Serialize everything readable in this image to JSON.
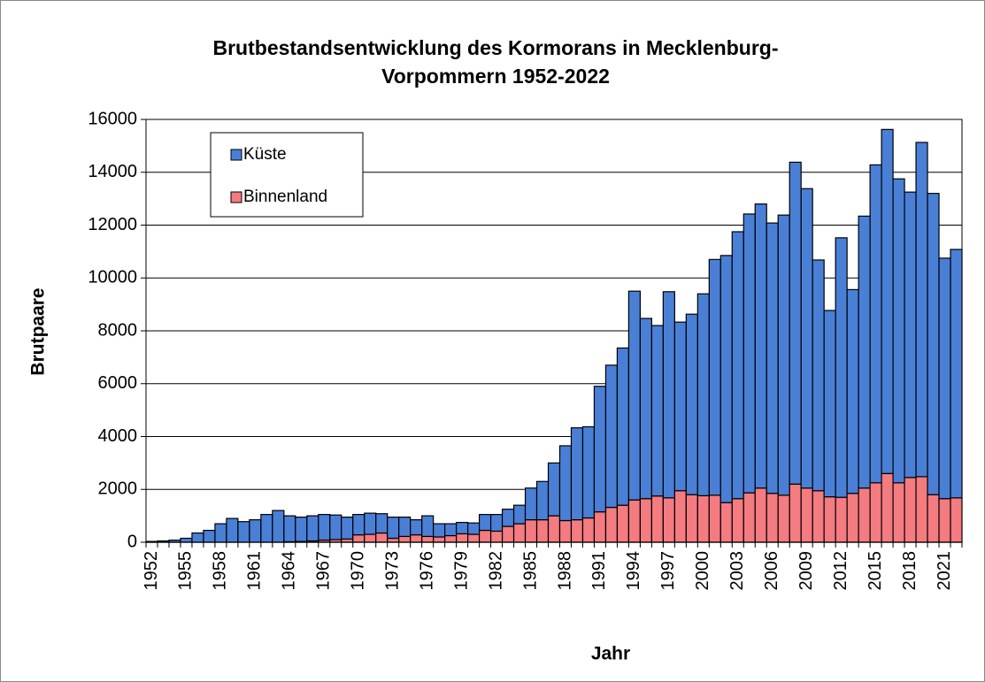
{
  "chart_data": {
    "type": "stacked_bar",
    "title": [
      "Brutbestandsentwicklung des Kormorans in Mecklenburg-",
      "Vorpommern 1952-2022"
    ],
    "x_label": "Jahr",
    "y_label": "Brutpaare",
    "categories": [
      "1952",
      null,
      null,
      "1955",
      null,
      null,
      "1958",
      null,
      null,
      "1961",
      null,
      null,
      "1964",
      null,
      null,
      "1967",
      null,
      null,
      "1970",
      null,
      null,
      "1973",
      null,
      null,
      "1976",
      null,
      null,
      "1979",
      null,
      null,
      "1982",
      null,
      null,
      "1985",
      null,
      null,
      "1988",
      null,
      null,
      "1991",
      null,
      null,
      "1994",
      null,
      null,
      "1997",
      null,
      null,
      "2000",
      null,
      null,
      "2003",
      null,
      null,
      "2006",
      null,
      null,
      "2009",
      null,
      null,
      "2012",
      null,
      null,
      "2015",
      null,
      null,
      "2018",
      null,
      null,
      "2021",
      null
    ],
    "series": [
      {
        "name": "Binnenland",
        "color": "#f47b80",
        "values": [
          0,
          0,
          0,
          0,
          0,
          0,
          0,
          0,
          0,
          0,
          0,
          0,
          20,
          30,
          50,
          80,
          100,
          120,
          280,
          300,
          350,
          150,
          220,
          280,
          220,
          200,
          250,
          320,
          300,
          450,
          420,
          600,
          700,
          850,
          850,
          1000,
          820,
          850,
          920,
          1150,
          1320,
          1400,
          1600,
          1650,
          1750,
          1680,
          1950,
          1800,
          1760,
          1780,
          1500,
          1650,
          1870,
          2050,
          1850,
          1780,
          2200,
          2050,
          1950,
          1720,
          1700,
          1850,
          2050,
          2250,
          2600,
          2250,
          2450,
          2480,
          1800,
          1650,
          1680
        ]
      },
      {
        "name": "Küste",
        "color": "#4a7fd6",
        "values": [
          30,
          50,
          80,
          150,
          350,
          450,
          700,
          900,
          780,
          850,
          1050,
          1200,
          980,
          920,
          950,
          970,
          930,
          830,
          770,
          800,
          730,
          800,
          730,
          570,
          780,
          500,
          450,
          430,
          430,
          600,
          630,
          650,
          700,
          1200,
          1450,
          2000,
          2830,
          3480,
          3450,
          4750,
          5380,
          5950,
          7900,
          6820,
          6450,
          7800,
          6380,
          6830,
          7640,
          8920,
          9350,
          10100,
          10550,
          10750,
          10230,
          10600,
          12180,
          11330,
          8730,
          7050,
          9820,
          7710,
          10290,
          12030,
          13020,
          11500,
          10800,
          12650,
          11400,
          9100,
          9400
        ]
      }
    ],
    "ylim": [
      0,
      16000
    ],
    "yticks": [
      0,
      2000,
      4000,
      6000,
      8000,
      10000,
      12000,
      14000,
      16000
    ],
    "grid": true,
    "legend_position": "top-left"
  }
}
